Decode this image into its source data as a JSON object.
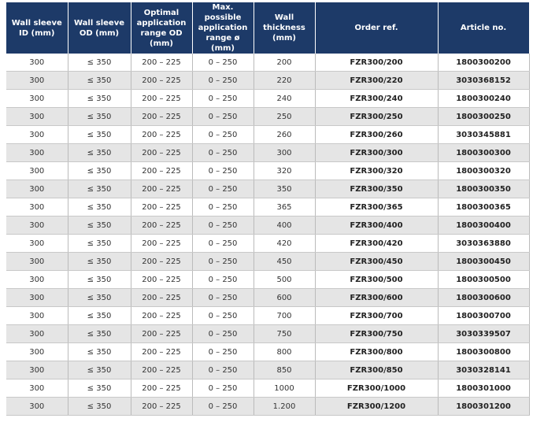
{
  "table": {
    "header": [
      "Wall sleeve ID (mm)",
      "Wall sleeve OD (mm)",
      "Optimal application range OD (mm)",
      "Max. possible application range ø (mm)",
      "Wall thickness (mm)",
      "Order ref.",
      "Article no."
    ],
    "rows": [
      [
        "300",
        "≤ 350",
        "200 – 225",
        "0 – 250",
        "200",
        "FZR300/200",
        "1800300200"
      ],
      [
        "300",
        "≤ 350",
        "200 – 225",
        "0 – 250",
        "220",
        "FZR300/220",
        "3030368152"
      ],
      [
        "300",
        "≤ 350",
        "200 – 225",
        "0 – 250",
        "240",
        "FZR300/240",
        "1800300240"
      ],
      [
        "300",
        "≤ 350",
        "200 – 225",
        "0 – 250",
        "250",
        "FZR300/250",
        "1800300250"
      ],
      [
        "300",
        "≤ 350",
        "200 – 225",
        "0 – 250",
        "260",
        "FZR300/260",
        "3030345881"
      ],
      [
        "300",
        "≤ 350",
        "200 – 225",
        "0 – 250",
        "300",
        "FZR300/300",
        "1800300300"
      ],
      [
        "300",
        "≤ 350",
        "200 – 225",
        "0 – 250",
        "320",
        "FZR300/320",
        "1800300320"
      ],
      [
        "300",
        "≤ 350",
        "200 – 225",
        "0 – 250",
        "350",
        "FZR300/350",
        "1800300350"
      ],
      [
        "300",
        "≤ 350",
        "200 – 225",
        "0 – 250",
        "365",
        "FZR300/365",
        "1800300365"
      ],
      [
        "300",
        "≤ 350",
        "200 – 225",
        "0 – 250",
        "400",
        "FZR300/400",
        "1800300400"
      ],
      [
        "300",
        "≤ 350",
        "200 – 225",
        "0 – 250",
        "420",
        "FZR300/420",
        "3030363880"
      ],
      [
        "300",
        "≤ 350",
        "200 – 225",
        "0 – 250",
        "450",
        "FZR300/450",
        "1800300450"
      ],
      [
        "300",
        "≤ 350",
        "200 – 225",
        "0 – 250",
        "500",
        "FZR300/500",
        "1800300500"
      ],
      [
        "300",
        "≤ 350",
        "200 – 225",
        "0 – 250",
        "600",
        "FZR300/600",
        "1800300600"
      ],
      [
        "300",
        "≤ 350",
        "200 – 225",
        "0 – 250",
        "700",
        "FZR300/700",
        "1800300700"
      ],
      [
        "300",
        "≤ 350",
        "200 – 225",
        "0 – 250",
        "750",
        "FZR300/750",
        "3030339507"
      ],
      [
        "300",
        "≤ 350",
        "200 – 225",
        "0 – 250",
        "800",
        "FZR300/800",
        "1800300800"
      ],
      [
        "300",
        "≤ 350",
        "200 – 225",
        "0 – 250",
        "850",
        "FZR300/850",
        "3030328141"
      ],
      [
        "300",
        "≤ 350",
        "200 – 225",
        "0 – 250",
        "1000",
        "FZR300/1000",
        "1800301000"
      ],
      [
        "300",
        "≤ 350",
        "200 – 225",
        "0 – 250",
        "1.200",
        "FZR300/1200",
        "1800301200"
      ]
    ]
  }
}
